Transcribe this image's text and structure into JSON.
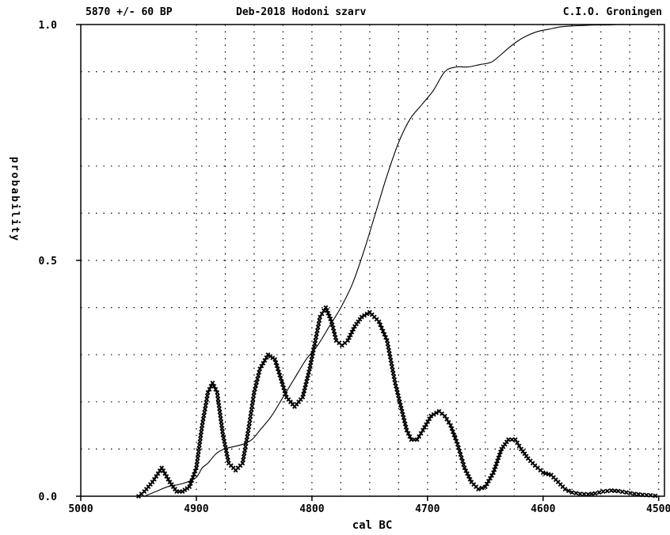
{
  "header": {
    "left": "5870 +/- 60 BP",
    "center": "Deb-2018 Hodoni szarv",
    "right": "C.I.O. Groningen"
  },
  "chart_data": {
    "type": "line",
    "xlabel": "cal BC",
    "ylabel": "probability",
    "xlim": [
      5000,
      4495
    ],
    "ylim": [
      0,
      1
    ],
    "x_ticks": [
      {
        "value": 5000,
        "label": "5000"
      },
      {
        "value": 4900,
        "label": "4900"
      },
      {
        "value": 4800,
        "label": "4800"
      },
      {
        "value": 4700,
        "label": "4700"
      },
      {
        "value": 4600,
        "label": "4600"
      },
      {
        "value": 4500,
        "label": "4500"
      }
    ],
    "y_ticks": [
      {
        "value": 0.0,
        "label": "0.0"
      },
      {
        "value": 0.5,
        "label": "0.5"
      },
      {
        "value": 1.0,
        "label": "1.0"
      }
    ],
    "grid": true,
    "series": [
      {
        "style": "cross-markers",
        "color": "#000000",
        "x": [
          4950,
          4945,
          4938,
          4930,
          4923,
          4917,
          4912,
          4906,
          4900,
          4895,
          4890,
          4886,
          4882,
          4877,
          4872,
          4866,
          4860,
          4855,
          4850,
          4845,
          4838,
          4832,
          4827,
          4822,
          4815,
          4808,
          4802,
          4797,
          4793,
          4788,
          4783,
          4779,
          4774,
          4769,
          4763,
          4757,
          4750,
          4742,
          4735,
          4728,
          4722,
          4718,
          4714,
          4709,
          4704,
          4697,
          4690,
          4685,
          4680,
          4674,
          4668,
          4662,
          4656,
          4650,
          4643,
          4636,
          4630,
          4624,
          4619,
          4613,
          4607,
          4600,
          4593,
          4587,
          4581,
          4575,
          4568,
          4561,
          4555,
          4548,
          4541,
          4535,
          4528,
          4521,
          4514,
          4507,
          4503
        ],
        "y": [
          0.0,
          0.01,
          0.03,
          0.06,
          0.03,
          0.01,
          0.01,
          0.02,
          0.06,
          0.15,
          0.22,
          0.24,
          0.22,
          0.13,
          0.07,
          0.055,
          0.07,
          0.14,
          0.22,
          0.27,
          0.3,
          0.29,
          0.25,
          0.21,
          0.19,
          0.21,
          0.27,
          0.33,
          0.38,
          0.4,
          0.37,
          0.33,
          0.32,
          0.33,
          0.36,
          0.38,
          0.39,
          0.37,
          0.33,
          0.24,
          0.18,
          0.14,
          0.12,
          0.12,
          0.14,
          0.17,
          0.18,
          0.17,
          0.15,
          0.11,
          0.06,
          0.03,
          0.015,
          0.02,
          0.05,
          0.1,
          0.12,
          0.12,
          0.1,
          0.08,
          0.065,
          0.05,
          0.045,
          0.03,
          0.015,
          0.008,
          0.005,
          0.004,
          0.006,
          0.01,
          0.012,
          0.011,
          0.008,
          0.005,
          0.003,
          0.002,
          0.001
        ]
      },
      {
        "style": "solid-line",
        "color": "#000000",
        "x": [
          4945,
          4935,
          4925,
          4915,
          4908,
          4900,
          4895,
          4890,
          4883,
          4876,
          4868,
          4860,
          4852,
          4845,
          4835,
          4825,
          4815,
          4805,
          4795,
          4785,
          4775,
          4765,
          4755,
          4745,
          4735,
          4725,
          4715,
          4705,
          4695,
          4685,
          4675,
          4665,
          4655,
          4645,
          4637,
          4630,
          4622,
          4615,
          4605,
          4595,
          4585,
          4575,
          4565,
          4555,
          4545,
          4535,
          4528,
          4520,
          4510,
          4500
        ],
        "y": [
          0.0,
          0.01,
          0.02,
          0.025,
          0.03,
          0.04,
          0.06,
          0.07,
          0.09,
          0.1,
          0.105,
          0.11,
          0.12,
          0.14,
          0.17,
          0.21,
          0.25,
          0.29,
          0.32,
          0.36,
          0.4,
          0.45,
          0.52,
          0.6,
          0.68,
          0.75,
          0.8,
          0.83,
          0.86,
          0.9,
          0.91,
          0.91,
          0.915,
          0.92,
          0.935,
          0.95,
          0.965,
          0.975,
          0.985,
          0.99,
          0.995,
          0.997,
          0.998,
          0.999,
          0.999,
          1.0,
          1.0,
          1.0,
          1.0,
          1.0
        ]
      }
    ]
  }
}
